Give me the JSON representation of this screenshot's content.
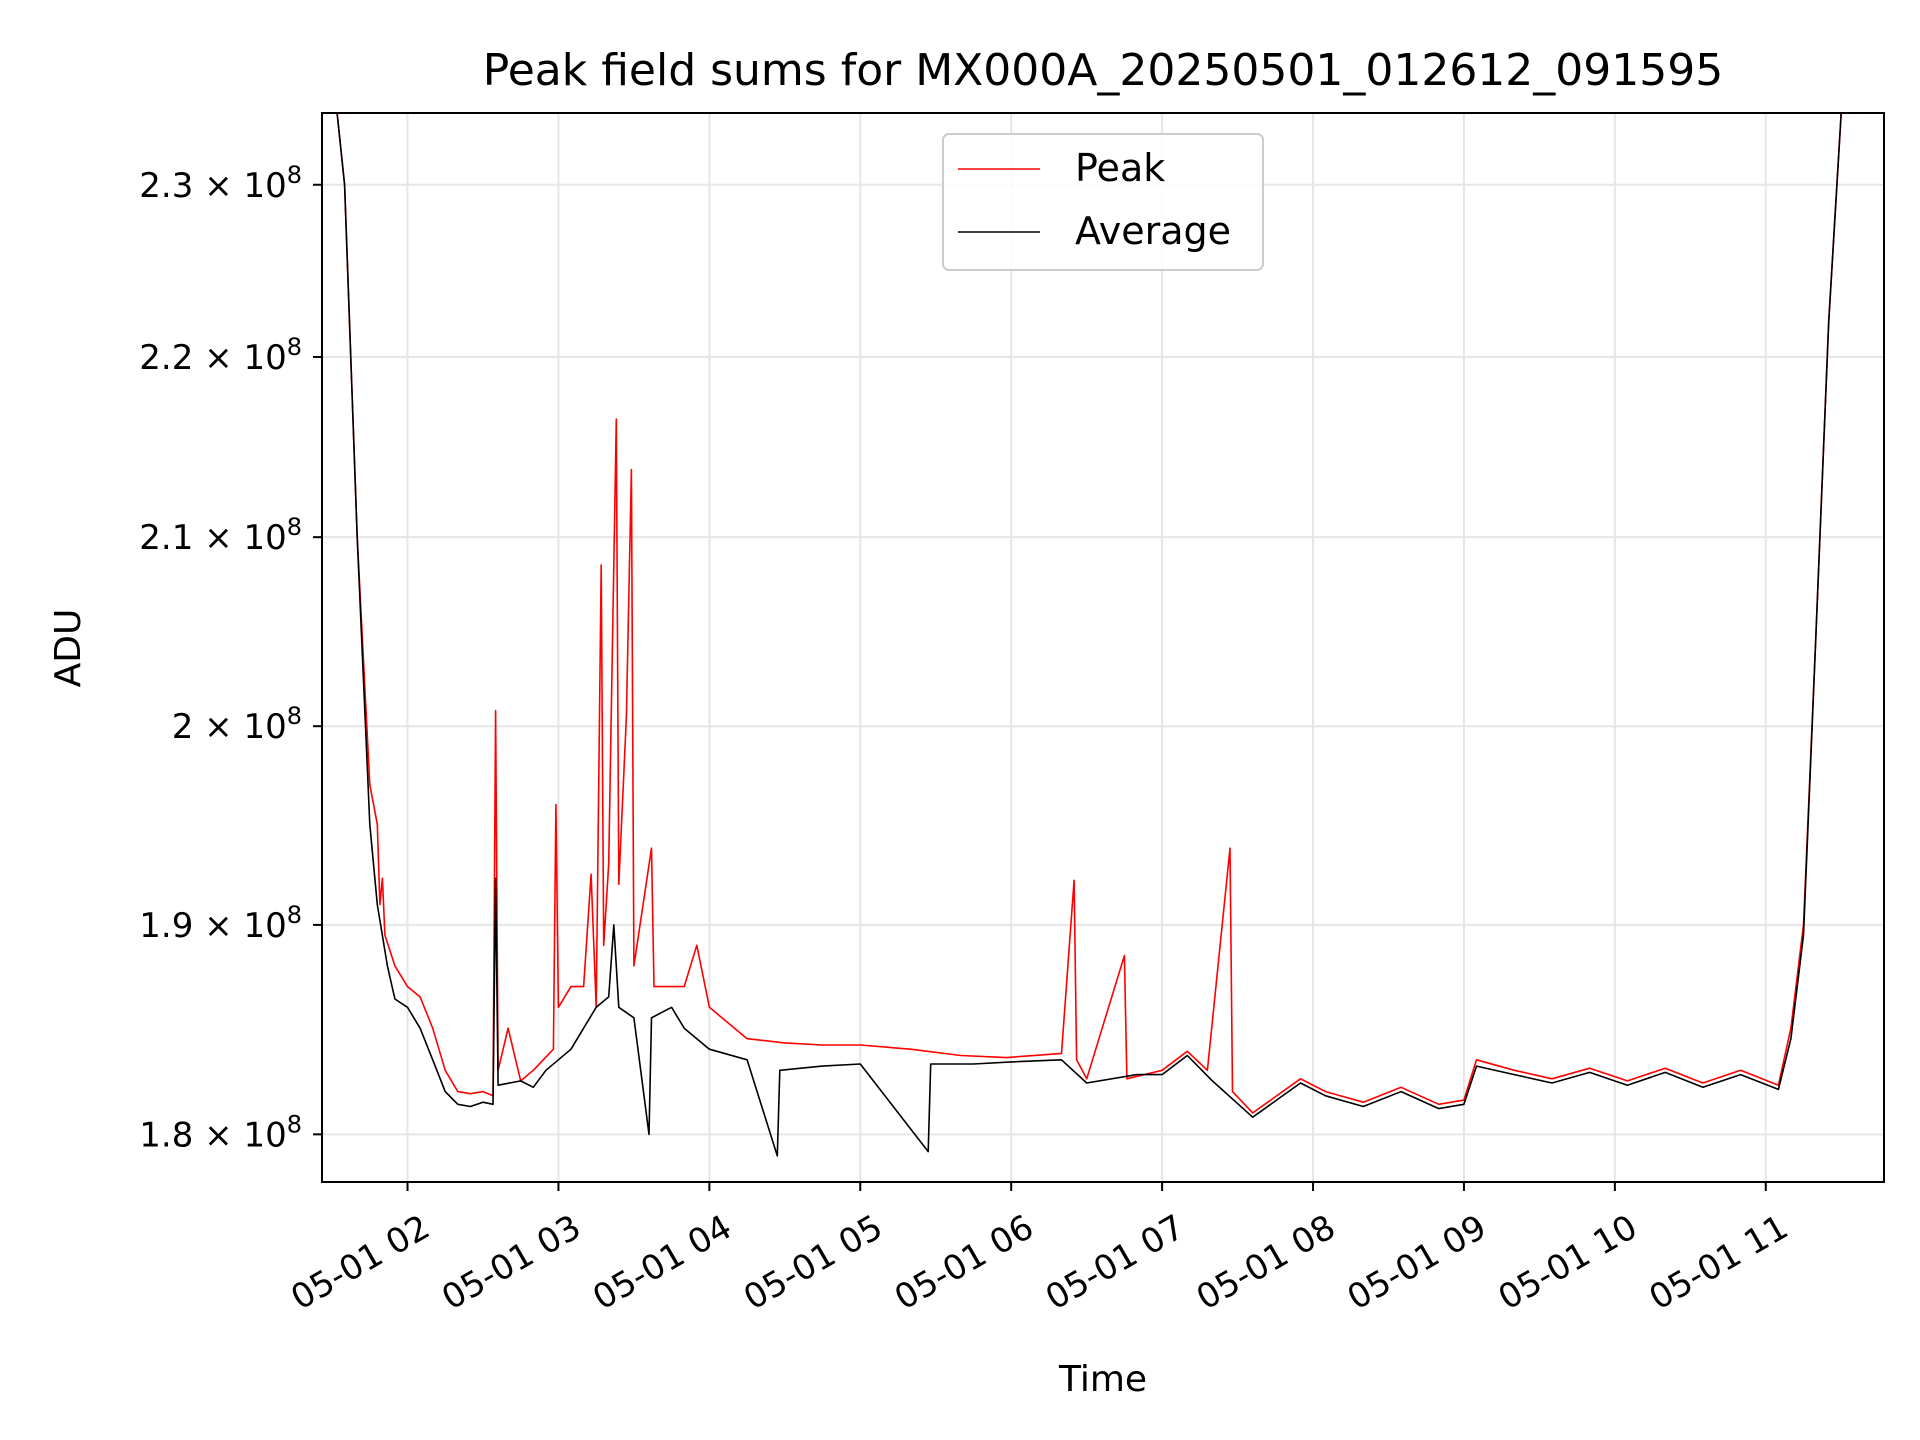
{
  "chart_data": {
    "type": "line",
    "title": "Peak field sums for MX000A_20250501_012612_091595",
    "xlabel": "Time",
    "ylabel": "ADU",
    "y_scale": "log",
    "x_range": [
      "2025-05-01 01:26",
      "2025-05-01 11:47"
    ],
    "ylim": [
      177800000,
      234300000
    ],
    "grid": true,
    "legend_position": "upper center",
    "x_ticks": [
      {
        "time": "2025-05-01 02:00",
        "label": "05-01 02"
      },
      {
        "time": "2025-05-01 03:00",
        "label": "05-01 03"
      },
      {
        "time": "2025-05-01 04:00",
        "label": "05-01 04"
      },
      {
        "time": "2025-05-01 05:00",
        "label": "05-01 05"
      },
      {
        "time": "2025-05-01 06:00",
        "label": "05-01 06"
      },
      {
        "time": "2025-05-01 07:00",
        "label": "05-01 07"
      },
      {
        "time": "2025-05-01 08:00",
        "label": "05-01 08"
      },
      {
        "time": "2025-05-01 09:00",
        "label": "05-01 09"
      },
      {
        "time": "2025-05-01 10:00",
        "label": "05-01 10"
      },
      {
        "time": "2025-05-01 11:00",
        "label": "05-01 11"
      }
    ],
    "y_ticks": [
      {
        "value": 180000000,
        "mantissa": "1.8",
        "exponent": "8"
      },
      {
        "value": 190000000,
        "mantissa": "1.9",
        "exponent": "8"
      },
      {
        "value": 200000000,
        "mantissa": "2",
        "exponent": "8"
      },
      {
        "value": 210000000,
        "mantissa": "2.1",
        "exponent": "8"
      },
      {
        "value": 220000000,
        "mantissa": "2.2",
        "exponent": "8"
      },
      {
        "value": 230000000,
        "mantissa": "2.3",
        "exponent": "8"
      }
    ],
    "series": [
      {
        "name": "Peak",
        "color": "#ff0000",
        "points": [
          [
            "2025-05-01 01:26",
            234300000
          ],
          [
            "2025-05-01 01:32",
            234300000
          ],
          [
            "2025-05-01 01:35",
            230000000
          ],
          [
            "2025-05-01 01:40",
            210000000
          ],
          [
            "2025-05-01 01:45",
            197000000
          ],
          [
            "2025-05-01 01:48",
            195000000
          ],
          [
            "2025-05-01 01:49",
            191000000
          ],
          [
            "2025-05-01 01:50",
            192300000
          ],
          [
            "2025-05-01 01:51",
            189500000
          ],
          [
            "2025-05-01 01:55",
            188000000
          ],
          [
            "2025-05-01 02:00",
            187000000
          ],
          [
            "2025-05-01 02:05",
            186500000
          ],
          [
            "2025-05-01 02:10",
            185000000
          ],
          [
            "2025-05-01 02:15",
            183000000
          ],
          [
            "2025-05-01 02:20",
            182000000
          ],
          [
            "2025-05-01 02:25",
            181900000
          ],
          [
            "2025-05-01 02:30",
            182000000
          ],
          [
            "2025-05-01 02:34",
            181800000
          ],
          [
            "2025-05-01 02:35",
            200800000
          ],
          [
            "2025-05-01 02:36",
            183000000
          ],
          [
            "2025-05-01 02:40",
            185000000
          ],
          [
            "2025-05-01 02:45",
            182500000
          ],
          [
            "2025-05-01 02:50",
            183000000
          ],
          [
            "2025-05-01 02:58",
            184000000
          ],
          [
            "2025-05-01 02:59",
            196000000
          ],
          [
            "2025-05-01 03:00",
            186000000
          ],
          [
            "2025-05-01 03:05",
            187000000
          ],
          [
            "2025-05-01 03:10",
            187000000
          ],
          [
            "2025-05-01 03:13",
            192500000
          ],
          [
            "2025-05-01 03:15",
            186000000
          ],
          [
            "2025-05-01 03:17",
            208500000
          ],
          [
            "2025-05-01 03:18",
            189000000
          ],
          [
            "2025-05-01 03:20",
            193000000
          ],
          [
            "2025-05-01 03:23",
            216500000
          ],
          [
            "2025-05-01 03:24",
            192000000
          ],
          [
            "2025-05-01 03:27",
            200500000
          ],
          [
            "2025-05-01 03:29",
            213700000
          ],
          [
            "2025-05-01 03:30",
            188000000
          ],
          [
            "2025-05-01 03:37",
            193800000
          ],
          [
            "2025-05-01 03:38",
            187000000
          ],
          [
            "2025-05-01 03:50",
            187000000
          ],
          [
            "2025-05-01 03:55",
            189000000
          ],
          [
            "2025-05-01 04:00",
            186000000
          ],
          [
            "2025-05-01 04:15",
            184500000
          ],
          [
            "2025-05-01 04:30",
            184300000
          ],
          [
            "2025-05-01 04:45",
            184200000
          ],
          [
            "2025-05-01 05:00",
            184200000
          ],
          [
            "2025-05-01 05:20",
            184000000
          ],
          [
            "2025-05-01 05:40",
            183700000
          ],
          [
            "2025-05-01 05:58",
            183600000
          ],
          [
            "2025-05-01 06:20",
            183800000
          ],
          [
            "2025-05-01 06:25",
            192200000
          ],
          [
            "2025-05-01 06:26",
            183500000
          ],
          [
            "2025-05-01 06:30",
            182600000
          ],
          [
            "2025-05-01 06:45",
            188500000
          ],
          [
            "2025-05-01 06:46",
            182600000
          ],
          [
            "2025-05-01 07:00",
            183000000
          ],
          [
            "2025-05-01 07:10",
            183900000
          ],
          [
            "2025-05-01 07:18",
            183000000
          ],
          [
            "2025-05-01 07:27",
            193800000
          ],
          [
            "2025-05-01 07:28",
            182000000
          ],
          [
            "2025-05-01 07:36",
            181000000
          ],
          [
            "2025-05-01 07:55",
            182600000
          ],
          [
            "2025-05-01 08:05",
            182000000
          ],
          [
            "2025-05-01 08:20",
            181500000
          ],
          [
            "2025-05-01 08:35",
            182200000
          ],
          [
            "2025-05-01 08:50",
            181400000
          ],
          [
            "2025-05-01 09:00",
            181600000
          ],
          [
            "2025-05-01 09:05",
            183500000
          ],
          [
            "2025-05-01 09:20",
            183000000
          ],
          [
            "2025-05-01 09:35",
            182600000
          ],
          [
            "2025-05-01 09:50",
            183100000
          ],
          [
            "2025-05-01 10:05",
            182500000
          ],
          [
            "2025-05-01 10:20",
            183100000
          ],
          [
            "2025-05-01 10:35",
            182400000
          ],
          [
            "2025-05-01 10:50",
            183000000
          ],
          [
            "2025-05-01 11:05",
            182300000
          ],
          [
            "2025-05-01 11:10",
            185000000
          ],
          [
            "2025-05-01 11:15",
            190000000
          ],
          [
            "2025-05-01 11:20",
            205000000
          ],
          [
            "2025-05-01 11:25",
            222000000
          ],
          [
            "2025-05-01 11:30",
            234300000
          ],
          [
            "2025-05-01 11:47",
            234300000
          ]
        ]
      },
      {
        "name": "Average",
        "color": "#000000",
        "points": [
          [
            "2025-05-01 01:26",
            234300000
          ],
          [
            "2025-05-01 01:32",
            234300000
          ],
          [
            "2025-05-01 01:35",
            230000000
          ],
          [
            "2025-05-01 01:40",
            210000000
          ],
          [
            "2025-05-01 01:45",
            195000000
          ],
          [
            "2025-05-01 01:48",
            191000000
          ],
          [
            "2025-05-01 01:52",
            188000000
          ],
          [
            "2025-05-01 01:55",
            186400000
          ],
          [
            "2025-05-01 02:00",
            186000000
          ],
          [
            "2025-05-01 02:05",
            185000000
          ],
          [
            "2025-05-01 02:10",
            183500000
          ],
          [
            "2025-05-01 02:15",
            182000000
          ],
          [
            "2025-05-01 02:20",
            181400000
          ],
          [
            "2025-05-01 02:25",
            181300000
          ],
          [
            "2025-05-01 02:30",
            181500000
          ],
          [
            "2025-05-01 02:34",
            181400000
          ],
          [
            "2025-05-01 02:35",
            192300000
          ],
          [
            "2025-05-01 02:36",
            182300000
          ],
          [
            "2025-05-01 02:45",
            182500000
          ],
          [
            "2025-05-01 02:50",
            182200000
          ],
          [
            "2025-05-01 02:55",
            183000000
          ],
          [
            "2025-05-01 03:00",
            183500000
          ],
          [
            "2025-05-01 03:05",
            184000000
          ],
          [
            "2025-05-01 03:10",
            185000000
          ],
          [
            "2025-05-01 03:15",
            186000000
          ],
          [
            "2025-05-01 03:20",
            186500000
          ],
          [
            "2025-05-01 03:22",
            190000000
          ],
          [
            "2025-05-01 03:24",
            186000000
          ],
          [
            "2025-05-01 03:30",
            185500000
          ],
          [
            "2025-05-01 03:36",
            180000000
          ],
          [
            "2025-05-01 03:37",
            185500000
          ],
          [
            "2025-05-01 03:45",
            186000000
          ],
          [
            "2025-05-01 03:50",
            185000000
          ],
          [
            "2025-05-01 04:00",
            184000000
          ],
          [
            "2025-05-01 04:15",
            183500000
          ],
          [
            "2025-05-01 04:27",
            179000000
          ],
          [
            "2025-05-01 04:28",
            183000000
          ],
          [
            "2025-05-01 04:45",
            183200000
          ],
          [
            "2025-05-01 05:00",
            183300000
          ],
          [
            "2025-05-01 05:27",
            179200000
          ],
          [
            "2025-05-01 05:28",
            183300000
          ],
          [
            "2025-05-01 05:45",
            183300000
          ],
          [
            "2025-05-01 06:00",
            183400000
          ],
          [
            "2025-05-01 06:20",
            183500000
          ],
          [
            "2025-05-01 06:30",
            182400000
          ],
          [
            "2025-05-01 06:50",
            182800000
          ],
          [
            "2025-05-01 07:00",
            182800000
          ],
          [
            "2025-05-01 07:10",
            183700000
          ],
          [
            "2025-05-01 07:20",
            182500000
          ],
          [
            "2025-05-01 07:36",
            180800000
          ],
          [
            "2025-05-01 07:55",
            182400000
          ],
          [
            "2025-05-01 08:05",
            181800000
          ],
          [
            "2025-05-01 08:20",
            181300000
          ],
          [
            "2025-05-01 08:35",
            182000000
          ],
          [
            "2025-05-01 08:50",
            181200000
          ],
          [
            "2025-05-01 09:00",
            181400000
          ],
          [
            "2025-05-01 09:05",
            183200000
          ],
          [
            "2025-05-01 09:20",
            182800000
          ],
          [
            "2025-05-01 09:35",
            182400000
          ],
          [
            "2025-05-01 09:50",
            182900000
          ],
          [
            "2025-05-01 10:05",
            182300000
          ],
          [
            "2025-05-01 10:20",
            182900000
          ],
          [
            "2025-05-01 10:35",
            182200000
          ],
          [
            "2025-05-01 10:50",
            182800000
          ],
          [
            "2025-05-01 11:05",
            182100000
          ],
          [
            "2025-05-01 11:10",
            184500000
          ],
          [
            "2025-05-01 11:15",
            189500000
          ],
          [
            "2025-05-01 11:20",
            205000000
          ],
          [
            "2025-05-01 11:25",
            222000000
          ],
          [
            "2025-05-01 11:30",
            234300000
          ],
          [
            "2025-05-01 11:47",
            234300000
          ]
        ]
      }
    ]
  }
}
